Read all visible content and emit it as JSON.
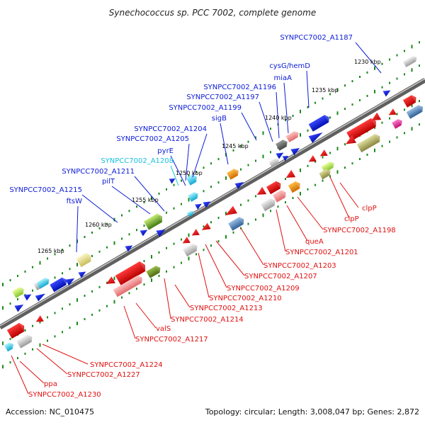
{
  "title": "Synechococcus sp. PCC 7002, complete genome",
  "footer": {
    "accession": "Accession: NC_010475",
    "topology": "Topology: circular; Length: 3,008,047 bp; Genes: 2,872"
  },
  "colors": {
    "forward": "#0b1bd6",
    "reverse": "#e01010",
    "highlight": "#19c0e0",
    "backbone": "#7a7a7a",
    "tick": "#1a8a1a"
  },
  "ticks": [
    {
      "label": "1230 kbp"
    },
    {
      "label": "1235 kbp"
    },
    {
      "label": "1240 kbp"
    },
    {
      "label": "1245 kbp"
    },
    {
      "label": "1250 kbp"
    },
    {
      "label": "1255 kbp"
    },
    {
      "label": "1260 kbp"
    },
    {
      "label": "1265 kbp"
    }
  ],
  "forward_labels": [
    {
      "text": "SYNPCC7002_A1187"
    },
    {
      "text": "cysG/hemD"
    },
    {
      "text": "miaA"
    },
    {
      "text": "SYNPCC7002_A1196"
    },
    {
      "text": "SYNPCC7002_A1197"
    },
    {
      "text": "SYNPCC7002_A1199"
    },
    {
      "text": "sigB"
    },
    {
      "text": "SYNPCC7002_A1204"
    },
    {
      "text": "SYNPCC7002_A1205"
    },
    {
      "text": "pyrE"
    },
    {
      "text": "SYNPCC7002_A1208",
      "highlight": true
    },
    {
      "text": "SYNPCC7002_A1211"
    },
    {
      "text": "pilT"
    },
    {
      "text": "SYNPCC7002_A1215"
    },
    {
      "text": "ftsW"
    }
  ],
  "reverse_labels": [
    {
      "text": "clpP"
    },
    {
      "text": "clpP"
    },
    {
      "text": "SYNPCC7002_A1198"
    },
    {
      "text": "queA"
    },
    {
      "text": "SYNPCC7002_A1201"
    },
    {
      "text": "SYNPCC7002_A1203"
    },
    {
      "text": "SYNPCC7002_A1207"
    },
    {
      "text": "SYNPCC7002_A1209"
    },
    {
      "text": "SYNPCC7002_A1210"
    },
    {
      "text": "SYNPCC7002_A1213"
    },
    {
      "text": "SYNPCC7002_A1214"
    },
    {
      "text": "valS"
    },
    {
      "text": "SYNPCC7002_A1217"
    },
    {
      "text": "SYNPCC7002_A1224"
    },
    {
      "text": "SYNPCC7002_A1227"
    },
    {
      "text": "ppa"
    },
    {
      "text": "SYNPCC7002_A1230"
    }
  ]
}
